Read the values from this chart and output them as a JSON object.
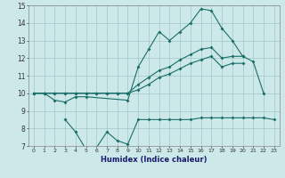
{
  "xlabel": "Humidex (Indice chaleur)",
  "x": [
    0,
    1,
    2,
    3,
    4,
    5,
    6,
    7,
    8,
    9,
    10,
    11,
    12,
    13,
    14,
    15,
    16,
    17,
    18,
    19,
    20,
    21,
    22,
    23
  ],
  "line1": [
    10.0,
    10.0,
    9.6,
    9.5,
    9.8,
    9.8,
    null,
    null,
    null,
    9.6,
    11.5,
    12.5,
    13.5,
    13.0,
    13.5,
    14.0,
    14.8,
    14.7,
    13.7,
    13.0,
    12.1,
    11.8,
    10.0,
    null
  ],
  "line2": [
    10.0,
    10.0,
    10.0,
    10.0,
    10.0,
    10.0,
    10.0,
    10.0,
    10.0,
    10.0,
    10.5,
    10.9,
    11.3,
    11.5,
    11.9,
    12.2,
    12.5,
    12.6,
    12.0,
    12.1,
    12.1,
    null,
    null,
    null
  ],
  "line3": [
    10.0,
    10.0,
    10.0,
    10.0,
    10.0,
    10.0,
    10.0,
    10.0,
    10.0,
    10.0,
    10.2,
    10.5,
    10.9,
    11.1,
    11.4,
    11.7,
    11.9,
    12.1,
    11.5,
    11.7,
    11.7,
    null,
    null,
    null
  ],
  "line4": [
    null,
    null,
    null,
    8.5,
    7.8,
    6.8,
    6.9,
    7.8,
    7.3,
    7.1,
    8.5,
    8.5,
    8.5,
    8.5,
    8.5,
    8.5,
    8.6,
    8.6,
    8.6,
    8.6,
    8.6,
    8.6,
    8.6,
    8.5
  ],
  "color": "#1a6e6a",
  "bg_color": "#cce8e8",
  "grid_color": "#a0c8c8",
  "ylim": [
    7,
    15
  ],
  "xlim": [
    -0.5,
    23.5
  ]
}
